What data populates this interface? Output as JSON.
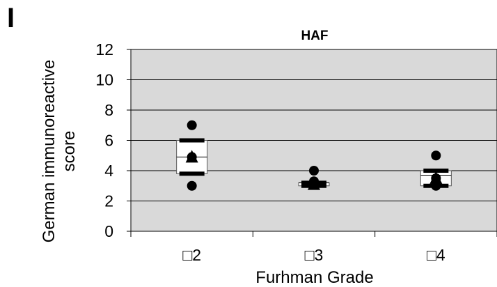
{
  "panel_label": "I",
  "chart_data": {
    "type": "box",
    "title": "HAF",
    "xlabel": "Furhman Grade",
    "ylabel_lines": [
      "German immunoreactive",
      "score"
    ],
    "ylim": [
      0,
      12
    ],
    "yticks": [
      0,
      2,
      4,
      6,
      8,
      10,
      12
    ],
    "grid": "horizontal",
    "background": "#d9d9d9",
    "categories": [
      "□2",
      "□3",
      "□4"
    ],
    "boxes": [
      {
        "q1": 3.8,
        "median": 4.9,
        "q3": 6.0,
        "whisker_low": 3.8,
        "whisker_high": 6.0,
        "mean": 4.9,
        "points": [
          7,
          3
        ]
      },
      {
        "q1": 3.0,
        "median": 3.2,
        "q3": 3.2,
        "whisker_low": 3.0,
        "whisker_high": 3.2,
        "mean": 3.1,
        "points": [
          4,
          3.3
        ]
      },
      {
        "q1": 3.0,
        "median": 3.7,
        "q3": 4.0,
        "whisker_low": 3.0,
        "whisker_high": 4.0,
        "mean": 3.5,
        "points": [
          5,
          3
        ]
      }
    ]
  }
}
